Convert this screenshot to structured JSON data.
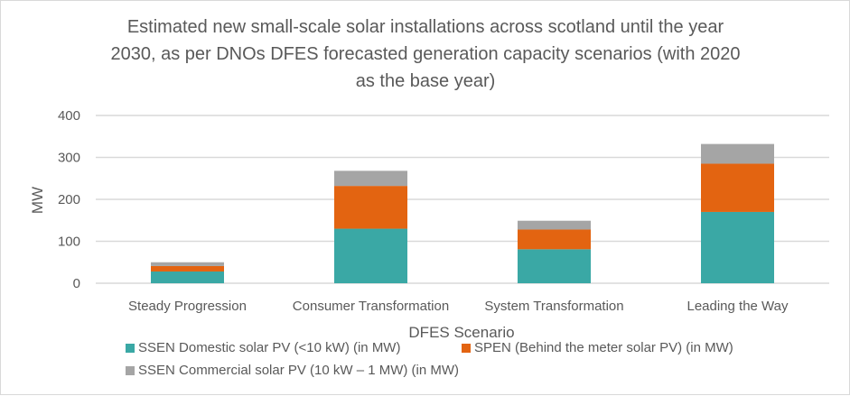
{
  "chart_data": {
    "type": "bar",
    "stacked": true,
    "title": "Estimated new small-scale solar installations across scotland until the year 2030, as per DNOs DFES forecasted generation capacity scenarios (with 2020 as the base year)",
    "title_lines": [
      "Estimated new small-scale solar installations across scotland until the year",
      "2030, as per DNOs DFES forecasted generation capacity scenarios (with 2020",
      "as the base year)"
    ],
    "xlabel": "DFES Scenario",
    "ylabel": "MW",
    "categories": [
      "Steady Progression",
      "Consumer Transformation",
      "System Transformation",
      "Leading the Way"
    ],
    "ylim": [
      0,
      400
    ],
    "yticks": [
      0,
      100,
      200,
      300,
      400
    ],
    "grid": true,
    "legend_position": "bottom",
    "series": [
      {
        "name": "SSEN Domestic solar PV (<10 kW) (in MW)",
        "color": "#3aa8a5",
        "values": [
          28,
          130,
          81,
          170
        ]
      },
      {
        "name": "SPEN (Behind the meter solar PV) (in MW)",
        "color": "#e36411",
        "values": [
          13,
          102,
          47,
          115
        ]
      },
      {
        "name": "SSEN Commercial solar PV (10 kW – 1 MW) (in MW)",
        "color": "#a5a5a5",
        "values": [
          9,
          36,
          21,
          47
        ]
      }
    ]
  }
}
